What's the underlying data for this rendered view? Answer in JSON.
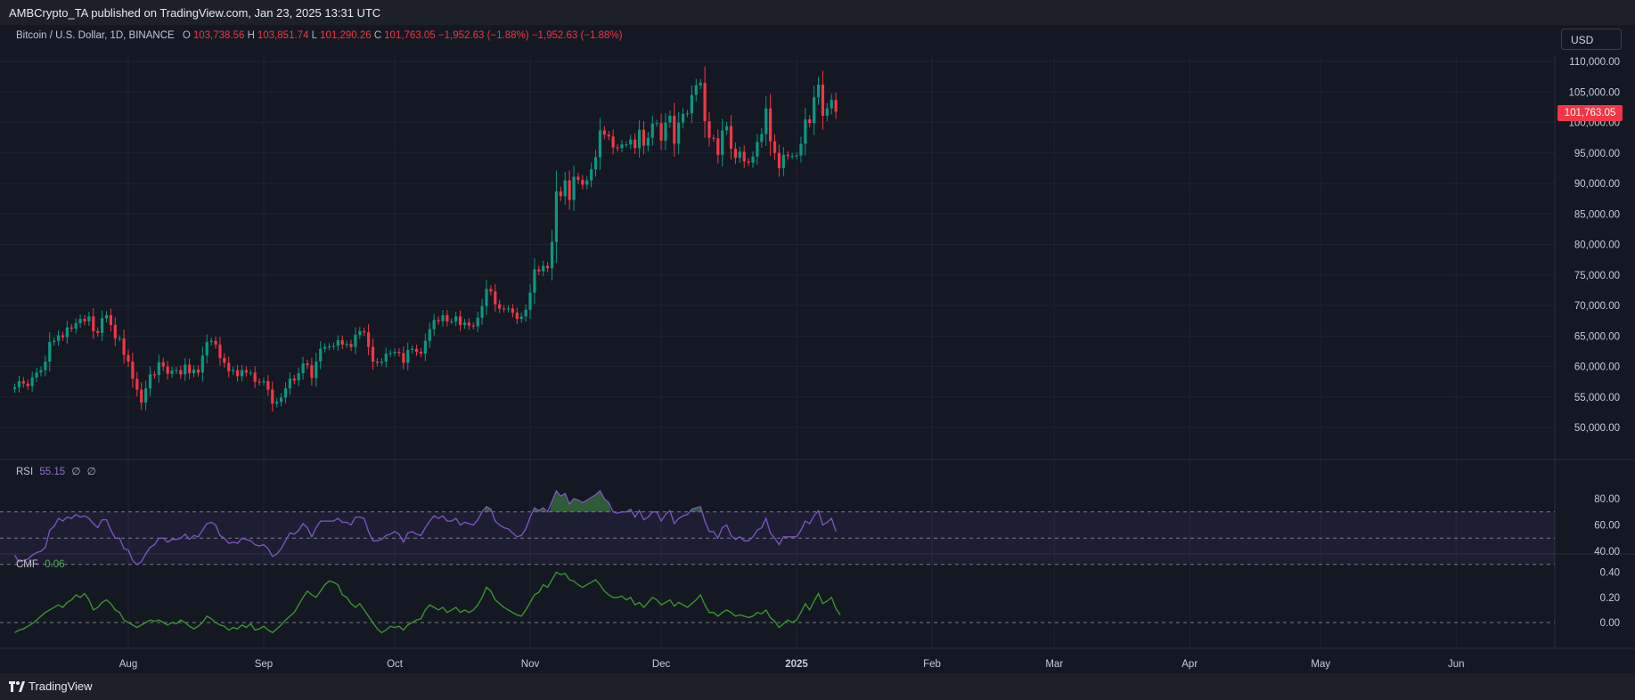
{
  "header": {
    "publisher_line": "AMBCrypto_TA published on TradingView.com, Jan 23, 2025 13:31 UTC"
  },
  "legend": {
    "symbol": "Bitcoin / U.S. Dollar, 1D, BINANCE",
    "o_label": "O",
    "o_value": "103,738.56",
    "h_label": "H",
    "h_value": "103,851.74",
    "l_label": "L",
    "l_value": "101,290.26",
    "c_label": "C",
    "c_value": "101,763.05",
    "change": "−1,952.63 (−1.88%)",
    "change2": "−1,952.63 (−1.88%)"
  },
  "currency_button": "USD",
  "last_price_tag": "101,763.05",
  "rsi": {
    "name": "RSI",
    "value": "55.15",
    "extra1": "∅",
    "extra2": "∅"
  },
  "cmf": {
    "name": "CMF",
    "value": "0.06"
  },
  "footer": {
    "brand": "TradingView"
  },
  "colors": {
    "background": "#141823",
    "up": "#089981",
    "down": "#f23645",
    "rsi_line": "#7e57c2",
    "cmf_line": "#3a9b2f"
  },
  "chart_data": {
    "type": "candlestick",
    "title": "",
    "price_axis": {
      "labels": [
        "110,000.00",
        "105,000.00",
        "100,000.00",
        "95,000.00",
        "90,000.00",
        "85,000.00",
        "80,000.00",
        "75,000.00",
        "70,000.00",
        "65,000.00",
        "60,000.00",
        "55,000.00",
        "50,000.00"
      ],
      "values": [
        110000,
        105000,
        100000,
        95000,
        90000,
        85000,
        80000,
        75000,
        70000,
        65000,
        60000,
        55000,
        50000
      ]
    },
    "time_axis": {
      "labels": [
        "Aug",
        "Sep",
        "Oct",
        "Nov",
        "Dec",
        "2025",
        "Feb",
        "Mar",
        "Apr",
        "May",
        "Jun"
      ],
      "dates": [
        "2024-08-01",
        "2024-09-01",
        "2024-10-01",
        "2024-11-01",
        "2024-12-01",
        "2025-01-01",
        "2025-02-01",
        "2025-03-01",
        "2025-04-01",
        "2025-05-01",
        "2025-06-01"
      ]
    },
    "series_start_date": "2024-07-06",
    "closes": [
      56600,
      57600,
      57200,
      56800,
      58200,
      59000,
      59400,
      60800,
      64000,
      64200,
      65100,
      64800,
      66400,
      66200,
      67100,
      67800,
      67400,
      68200,
      65800,
      65500,
      67900,
      68400,
      66800,
      64600,
      64600,
      61900,
      60800,
      58000,
      56200,
      54100,
      56400,
      58700,
      58600,
      60700,
      60000,
      58800,
      59300,
      59400,
      58700,
      60300,
      58900,
      59500,
      59000,
      61800,
      64000,
      64200,
      63600,
      61400,
      60600,
      59200,
      59400,
      58400,
      59400,
      59000,
      59000,
      57500,
      57400,
      57600,
      56200,
      53900,
      54200,
      54900,
      56400,
      58000,
      57700,
      58900,
      60500,
      60200,
      58100,
      60800,
      62900,
      63200,
      63300,
      63400,
      64300,
      63600,
      63700,
      63200,
      65200,
      65800,
      65600,
      63200,
      60800,
      60600,
      60800,
      62100,
      62200,
      62400,
      62200,
      60600,
      62700,
      62900,
      62400,
      62100,
      64200,
      66100,
      67600,
      67400,
      68400,
      67400,
      67400,
      68200,
      66800,
      67200,
      66700,
      66600,
      68000,
      69900,
      72700,
      72300,
      70200,
      69500,
      69400,
      69500,
      68800,
      67800,
      68200,
      69300,
      72100,
      75900,
      75600,
      76500,
      76100,
      80400,
      88700,
      87900,
      90500,
      87300,
      91100,
      90600,
      89800,
      90500,
      92300,
      94300,
      98700,
      98000,
      97700,
      95900,
      95800,
      96400,
      96400,
      97200,
      95800,
      98800,
      96200,
      97500,
      99800,
      99900,
      97000,
      100000,
      101100,
      96500,
      100000,
      101400,
      101500,
      104500,
      106100,
      106500,
      100200,
      97500,
      97400,
      94700,
      98700,
      99400,
      95700,
      94200,
      95200,
      93600,
      93400,
      94400,
      96800,
      98100,
      102300,
      96900,
      95000,
      92500,
      94700,
      94500,
      94500,
      94600,
      96500,
      100500,
      99900,
      104100,
      106200,
      101100,
      102300,
      103700,
      101763
    ]
  },
  "rsi_data": {
    "type": "line",
    "axis_labels": [
      "80.00",
      "60.00",
      "40.00"
    ],
    "axis_values": [
      80,
      60,
      40
    ],
    "bands": [
      70,
      50,
      30
    ],
    "values": [
      37,
      32,
      33,
      34,
      37,
      39,
      40,
      43,
      56,
      59,
      65,
      63,
      66,
      65,
      68,
      66,
      67,
      65,
      61,
      58,
      64,
      64,
      56,
      50,
      50,
      42,
      41,
      33,
      30,
      32,
      38,
      43,
      45,
      50,
      50,
      47,
      49,
      49,
      50,
      53,
      49,
      52,
      51,
      56,
      61,
      62,
      60,
      52,
      50,
      46,
      47,
      46,
      50,
      49,
      48,
      45,
      44,
      45,
      42,
      36,
      38,
      42,
      48,
      54,
      53,
      56,
      61,
      58,
      51,
      58,
      63,
      63,
      63,
      63,
      65,
      62,
      62,
      60,
      66,
      66,
      65,
      55,
      48,
      48,
      49,
      52,
      53,
      55,
      53,
      47,
      54,
      55,
      53,
      52,
      58,
      63,
      67,
      65,
      67,
      63,
      63,
      65,
      60,
      62,
      61,
      60,
      64,
      70,
      74,
      72,
      63,
      60,
      58,
      57,
      54,
      51,
      52,
      57,
      66,
      73,
      71,
      73,
      70,
      78,
      86,
      82,
      84,
      76,
      80,
      79,
      77,
      79,
      81,
      83,
      86,
      80,
      77,
      70,
      69,
      70,
      70,
      72,
      66,
      71,
      64,
      66,
      70,
      70,
      63,
      68,
      71,
      61,
      65,
      67,
      68,
      72,
      73,
      74,
      63,
      55,
      55,
      50,
      58,
      60,
      52,
      49,
      51,
      48,
      48,
      51,
      56,
      58,
      65,
      54,
      50,
      45,
      51,
      51,
      51,
      51,
      56,
      63,
      61,
      67,
      71,
      60,
      62,
      65,
      55.15
    ]
  },
  "cmf_data": {
    "type": "line",
    "axis_labels": [
      "0.40",
      "0.20",
      "0.00"
    ],
    "axis_values": [
      0.4,
      0.2,
      0
    ],
    "zero_line": 0,
    "values": [
      -0.08,
      -0.06,
      -0.05,
      -0.03,
      -0.01,
      0.02,
      0.05,
      0.08,
      0.1,
      0.12,
      0.14,
      0.12,
      0.16,
      0.18,
      0.22,
      0.2,
      0.23,
      0.18,
      0.1,
      0.12,
      0.16,
      0.18,
      0.15,
      0.1,
      0.08,
      0.02,
      0.0,
      -0.02,
      -0.04,
      -0.02,
      0.0,
      0.02,
      0.01,
      0.02,
      0.0,
      -0.02,
      0.0,
      -0.01,
      0.02,
      0.0,
      -0.03,
      -0.05,
      -0.03,
      0.0,
      0.05,
      0.03,
      0.0,
      -0.02,
      -0.03,
      -0.06,
      -0.04,
      -0.05,
      -0.02,
      -0.04,
      -0.01,
      -0.06,
      -0.05,
      -0.03,
      -0.06,
      -0.08,
      -0.05,
      -0.02,
      0.02,
      0.05,
      0.08,
      0.14,
      0.2,
      0.25,
      0.22,
      0.2,
      0.25,
      0.3,
      0.33,
      0.32,
      0.3,
      0.22,
      0.2,
      0.15,
      0.12,
      0.15,
      0.1,
      0.05,
      0.0,
      -0.05,
      -0.08,
      -0.06,
      -0.03,
      -0.04,
      -0.03,
      -0.06,
      -0.02,
      0.0,
      0.02,
      0.03,
      0.1,
      0.14,
      0.12,
      0.1,
      0.12,
      0.08,
      0.1,
      0.12,
      0.08,
      0.1,
      0.08,
      0.1,
      0.14,
      0.2,
      0.28,
      0.25,
      0.18,
      0.15,
      0.12,
      0.1,
      0.08,
      0.06,
      0.05,
      0.1,
      0.16,
      0.22,
      0.24,
      0.3,
      0.28,
      0.34,
      0.4,
      0.38,
      0.39,
      0.34,
      0.33,
      0.3,
      0.28,
      0.3,
      0.32,
      0.34,
      0.3,
      0.25,
      0.22,
      0.2,
      0.2,
      0.21,
      0.18,
      0.2,
      0.14,
      0.16,
      0.12,
      0.16,
      0.2,
      0.18,
      0.14,
      0.16,
      0.18,
      0.13,
      0.16,
      0.14,
      0.12,
      0.15,
      0.18,
      0.22,
      0.14,
      0.08,
      0.08,
      0.05,
      0.08,
      0.1,
      0.08,
      0.05,
      0.06,
      0.05,
      0.04,
      0.05,
      0.08,
      0.07,
      0.1,
      0.04,
      0.01,
      -0.04,
      -0.01,
      0.02,
      0.0,
      0.02,
      0.08,
      0.15,
      0.1,
      0.17,
      0.23,
      0.15,
      0.17,
      0.2,
      0.11,
      0.06
    ]
  }
}
